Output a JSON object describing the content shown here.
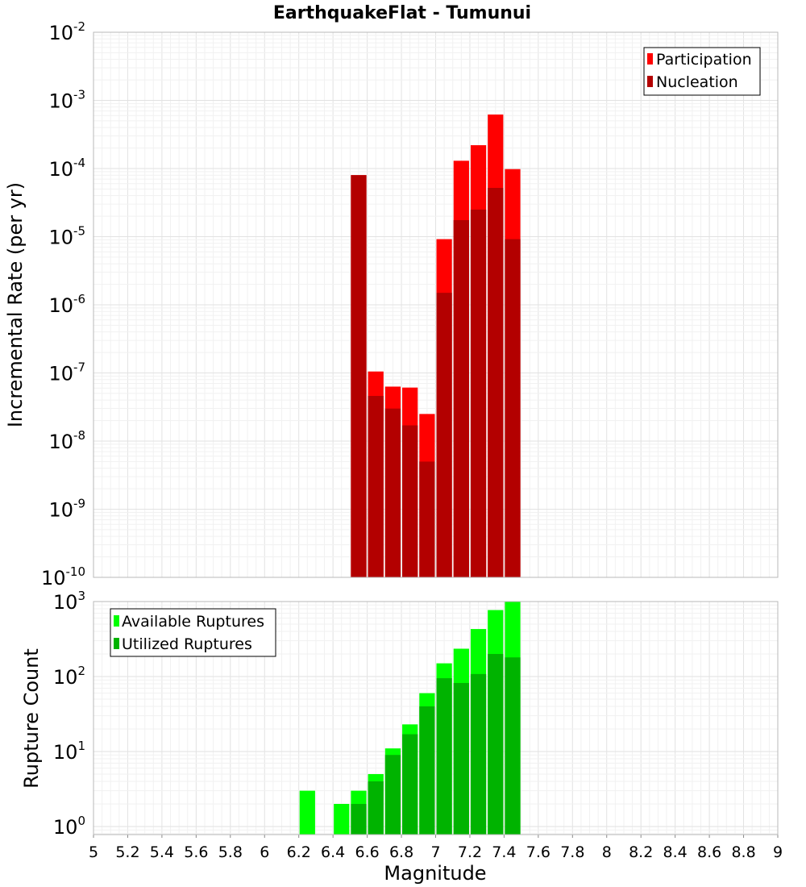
{
  "chart_data": [
    {
      "type": "bar",
      "title": "EarthquakeFlat - Tumunui",
      "xlabel": "",
      "ylabel": "Incremental Rate (per yr)",
      "yscale": "log",
      "ylim": [
        1e-10,
        0.01
      ],
      "xlim": [
        5,
        9
      ],
      "legend_position": "top-right",
      "grid": true,
      "y_tick_labels": [
        {
          "base": "10",
          "exp": "-2",
          "value": 0.01
        },
        {
          "base": "10",
          "exp": "-3",
          "value": 0.001
        },
        {
          "base": "10",
          "exp": "-4",
          "value": 0.0001
        },
        {
          "base": "10",
          "exp": "-5",
          "value": 1e-05
        },
        {
          "base": "10",
          "exp": "-6",
          "value": 1e-06
        },
        {
          "base": "10",
          "exp": "-7",
          "value": 1e-07
        },
        {
          "base": "10",
          "exp": "-8",
          "value": 1e-08
        },
        {
          "base": "10",
          "exp": "-9",
          "value": 1e-09
        },
        {
          "base": "10",
          "exp": "-10",
          "value": 1e-10
        }
      ],
      "x": [
        6.55,
        6.65,
        6.75,
        6.85,
        6.95,
        7.05,
        7.15,
        7.25,
        7.35,
        7.45
      ],
      "series": [
        {
          "name": "Participation",
          "color": "#ff0000",
          "values": [
            8e-05,
            1.05e-07,
            6.3e-08,
            6.1e-08,
            2.5e-08,
            9.2e-06,
            0.00013,
            0.00022,
            0.00062,
            9.8e-05
          ]
        },
        {
          "name": "Nucleation",
          "color": "#b30000",
          "values": [
            8e-05,
            4.6e-08,
            3e-08,
            1.7e-08,
            5e-09,
            1.5e-06,
            1.75e-05,
            2.5e-05,
            5.2e-05,
            9.2e-06
          ]
        }
      ]
    },
    {
      "type": "bar",
      "title": "",
      "xlabel": "Magnitude",
      "ylabel": "Rupture Count",
      "yscale": "log",
      "ylim": [
        0.78,
        1000
      ],
      "xlim": [
        5,
        9
      ],
      "legend_position": "top-left",
      "grid": true,
      "y_tick_labels": [
        {
          "base": "10",
          "exp": "3",
          "value": 1000
        },
        {
          "base": "10",
          "exp": "2",
          "value": 100
        },
        {
          "base": "10",
          "exp": "1",
          "value": 10
        },
        {
          "base": "10",
          "exp": "0",
          "value": 1
        }
      ],
      "x_tick_labels": [
        "5",
        "5.2",
        "5.4",
        "5.6",
        "5.8",
        "6",
        "6.2",
        "6.4",
        "6.6",
        "6.8",
        "7",
        "7.2",
        "7.4",
        "7.6",
        "7.8",
        "8",
        "8.2",
        "8.4",
        "8.6",
        "8.8",
        "9"
      ],
      "x": [
        6.25,
        6.35,
        6.45,
        6.55,
        6.65,
        6.75,
        6.85,
        6.95,
        7.05,
        7.15,
        7.25,
        7.35,
        7.45
      ],
      "series": [
        {
          "name": "Available Ruptures",
          "color": "#00ff00",
          "values": [
            3,
            0,
            2,
            3,
            5,
            11,
            23,
            60,
            150,
            235,
            430,
            770,
            1000
          ]
        },
        {
          "name": "Utilized Ruptures",
          "color": "#00b300",
          "values": [
            0,
            0,
            0,
            2,
            4,
            9,
            17,
            40,
            95,
            82,
            108,
            200,
            180
          ]
        }
      ]
    }
  ]
}
